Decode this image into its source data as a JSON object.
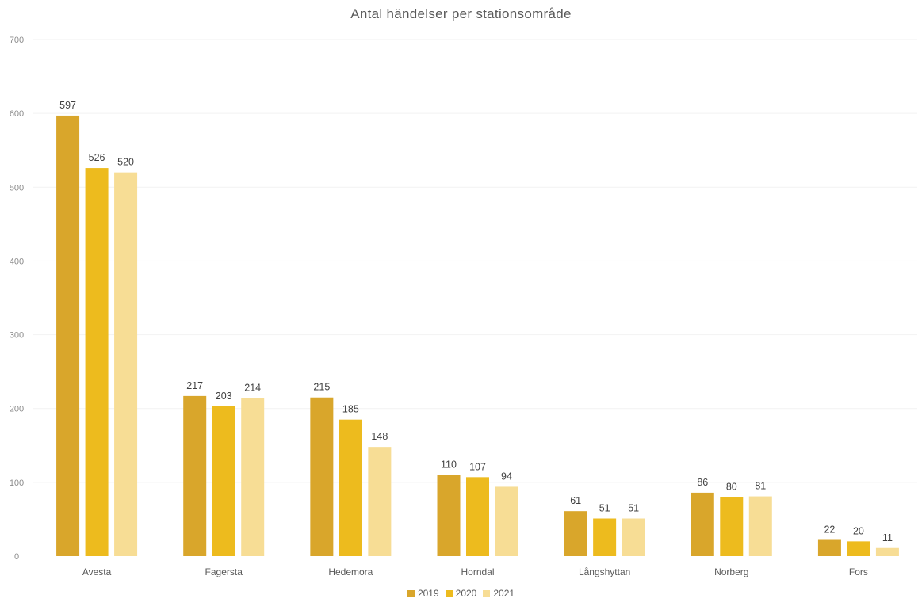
{
  "chart_data": {
    "type": "bar",
    "title": "Antal händelser per stationsområde",
    "xlabel": "",
    "ylabel": "",
    "ylim": [
      0,
      700
    ],
    "yticks": [
      0,
      100,
      200,
      300,
      400,
      500,
      600,
      700
    ],
    "categories": [
      "Avesta",
      "Fagersta",
      "Hedemora",
      "Horndal",
      "Långshyttan",
      "Norberg",
      "Fors"
    ],
    "series": [
      {
        "name": "2019",
        "color": "#d9a62b",
        "values": [
          597,
          217,
          215,
          110,
          61,
          86,
          22
        ]
      },
      {
        "name": "2020",
        "color": "#edbb1e",
        "values": [
          526,
          203,
          185,
          107,
          51,
          80,
          20
        ]
      },
      {
        "name": "2021",
        "color": "#f7dd95",
        "values": [
          520,
          214,
          148,
          94,
          51,
          81,
          11
        ]
      }
    ],
    "grid": true,
    "legend_position": "bottom"
  }
}
